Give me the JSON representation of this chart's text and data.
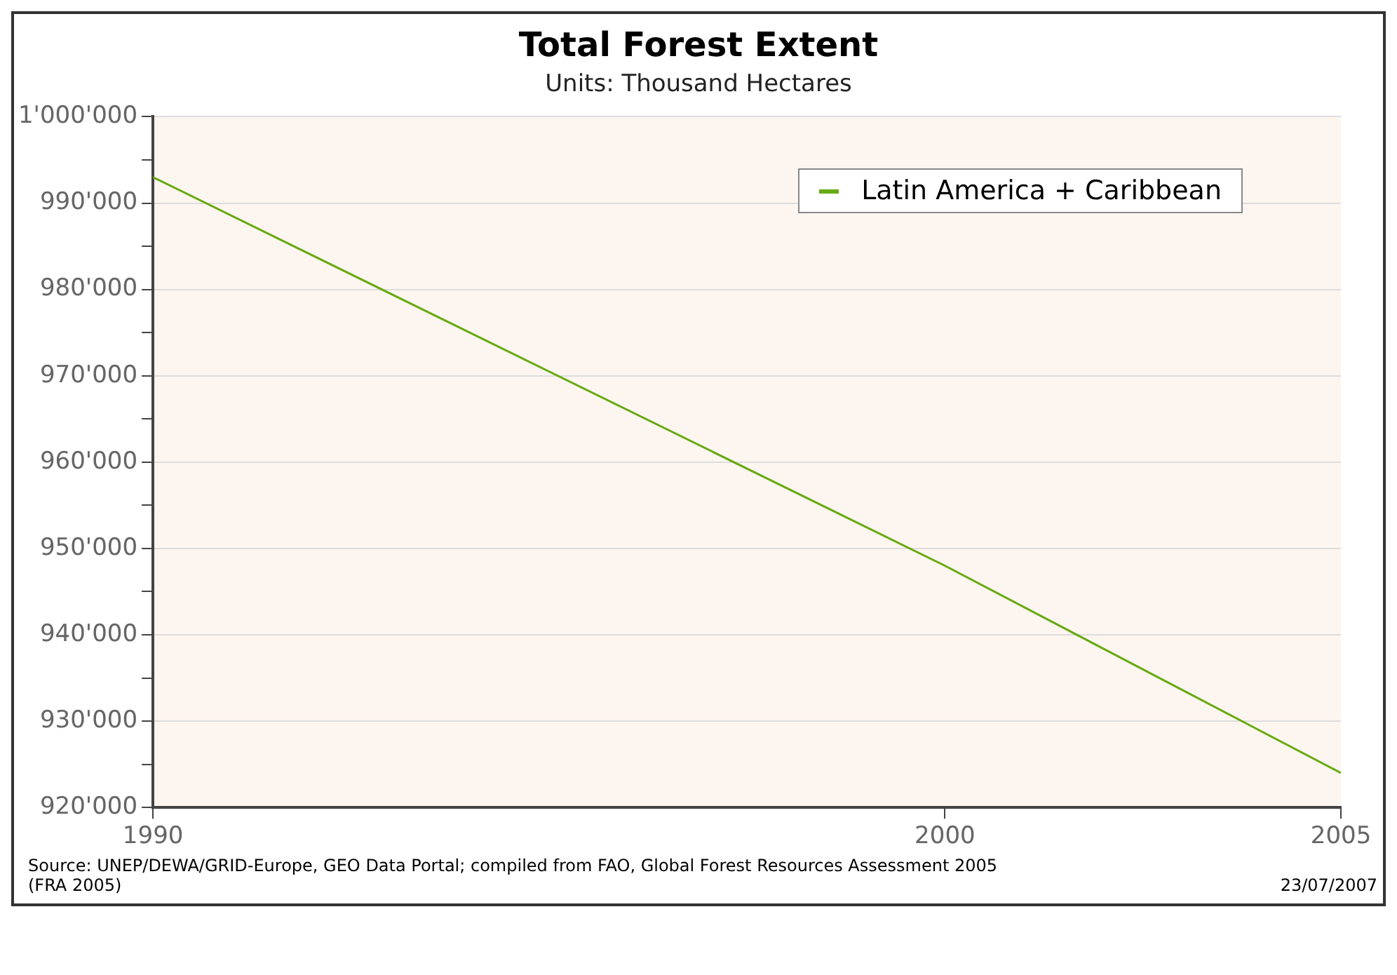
{
  "chart_data": {
    "type": "line",
    "title": "Total Forest Extent",
    "subtitle": "Units: Thousand Hectares",
    "x": [
      1990,
      2000,
      2005
    ],
    "series": [
      {
        "name": "Latin America + Caribbean",
        "color": "#66aa11",
        "values": [
          993000,
          948000,
          924000
        ]
      }
    ],
    "xlim": [
      1990,
      2005
    ],
    "xticks": [
      1990,
      2000,
      2005
    ],
    "ylim": [
      920000,
      1000000
    ],
    "yticks": [
      {
        "value": 920000,
        "label": "920'000"
      },
      {
        "value": 925000,
        "label": null
      },
      {
        "value": 930000,
        "label": "930'000"
      },
      {
        "value": 935000,
        "label": null
      },
      {
        "value": 940000,
        "label": "940'000"
      },
      {
        "value": 945000,
        "label": null
      },
      {
        "value": 950000,
        "label": "950'000"
      },
      {
        "value": 955000,
        "label": null
      },
      {
        "value": 960000,
        "label": "960'000"
      },
      {
        "value": 965000,
        "label": null
      },
      {
        "value": 970000,
        "label": "970'000"
      },
      {
        "value": 975000,
        "label": null
      },
      {
        "value": 980000,
        "label": "980'000"
      },
      {
        "value": 985000,
        "label": null
      },
      {
        "value": 990000,
        "label": "990'000"
      },
      {
        "value": 995000,
        "label": null
      },
      {
        "value": 1000000,
        "label": "1'000'000"
      }
    ],
    "grid": "y",
    "legend": "top right",
    "marker": "none",
    "line_style": "solid",
    "annotations": [
      "Source: UNEP/DEWA/GRID-Europe, GEO Data Portal; compiled from FAO, Global Forest Resources Assessment 2005 (FRA 2005)",
      "23/07/2007"
    ]
  }
}
